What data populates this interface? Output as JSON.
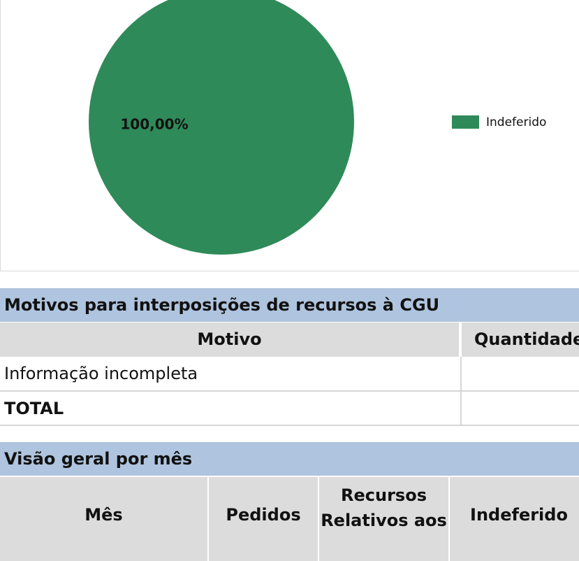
{
  "chart_data": {
    "type": "pie",
    "categories": [
      "Indeferido"
    ],
    "values": [
      100
    ],
    "value_labels": [
      "100,00%"
    ],
    "colors": [
      "#2f8a59"
    ],
    "legend": "right"
  },
  "motivos": {
    "title": "Motivos para interposições de recursos à CGU",
    "header": [
      "Motivo",
      "Quantidade"
    ],
    "rows": [
      [
        "Informação incompleta"
      ],
      [
        "TOTAL"
      ]
    ]
  },
  "visao": {
    "title": "Visão geral por mês",
    "header": [
      "Mês",
      "Pedidos",
      "Recursos Relativos aos",
      "Indeferido"
    ]
  }
}
